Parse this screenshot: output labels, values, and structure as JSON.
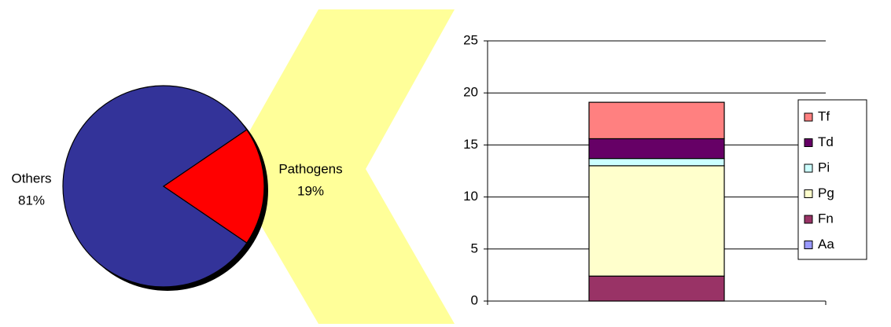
{
  "chart_data": [
    {
      "type": "pie",
      "categories": [
        "Others",
        "Pathogens"
      ],
      "values": [
        81,
        19
      ],
      "value_labels": [
        "81%",
        "19%"
      ],
      "colors": [
        "#333399",
        "#ff0000"
      ]
    },
    {
      "type": "stacked-bar",
      "categories": [
        null
      ],
      "series": [
        {
          "name": "Aa",
          "color": "#9999ff",
          "values": [
            0
          ]
        },
        {
          "name": "Fn",
          "color": "#993366",
          "values": [
            2.4
          ]
        },
        {
          "name": "Pg",
          "color": "#ffffcc",
          "values": [
            10.6
          ]
        },
        {
          "name": "Pi",
          "color": "#ccffff",
          "values": [
            0.7
          ]
        },
        {
          "name": "Td",
          "color": "#660066",
          "values": [
            1.9
          ]
        },
        {
          "name": "Tf",
          "color": "#ff8080",
          "values": [
            3.5
          ]
        }
      ],
      "ylim": [
        0,
        25
      ],
      "yticks": [
        0,
        5,
        10,
        15,
        20,
        25
      ],
      "grid": true,
      "legend": "right"
    }
  ]
}
